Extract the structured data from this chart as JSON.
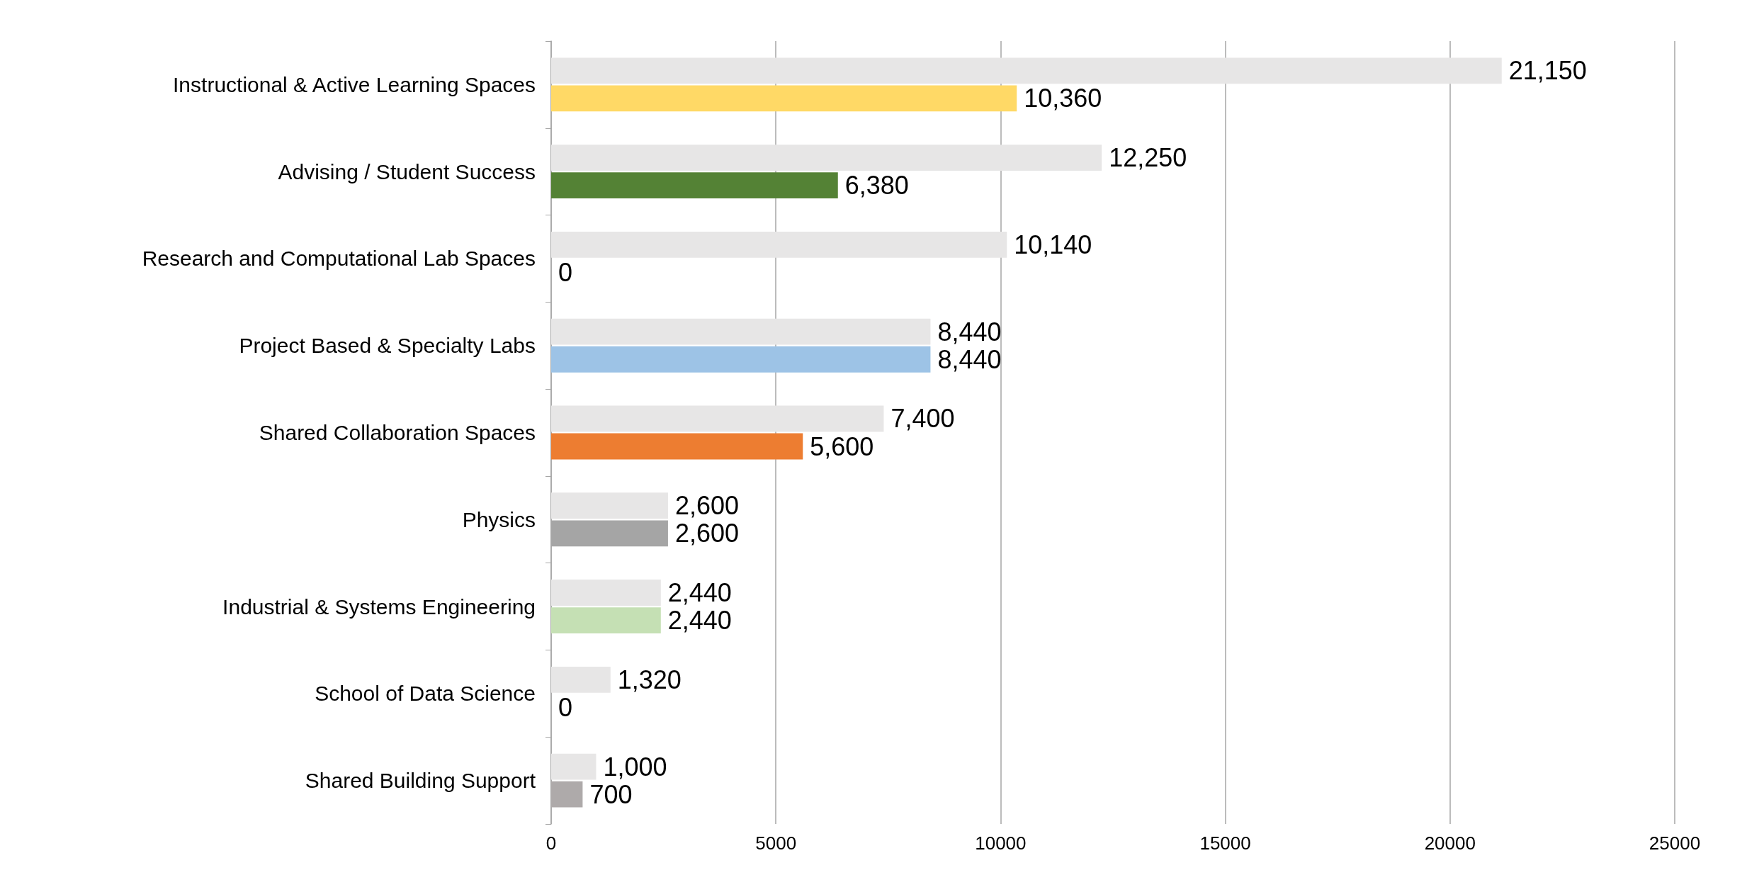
{
  "chart_data": {
    "type": "bar",
    "orientation": "horizontal",
    "categories": [
      "Instructional & Active Learning Spaces",
      "Advising / Student Success",
      "Research and Computational Lab Spaces",
      "Project Based & Specialty Labs",
      "Shared Collaboration Spaces",
      "Physics",
      "Industrial & Systems Engineering",
      "School of Data Science",
      "Shared Building Support"
    ],
    "series": [
      {
        "color": "#e7e6e6",
        "values": [
          21150,
          12250,
          10140,
          8440,
          7400,
          2600,
          2440,
          1320,
          1000
        ],
        "value_labels": [
          "21,150",
          "12,250",
          "10,140",
          "8,440",
          "7,400",
          "2,600",
          "2,440",
          "1,320",
          "1,000"
        ]
      },
      {
        "colors": [
          "#ffd966",
          "#548235",
          "#a5a5a5",
          "#9dc3e6",
          "#ed7d31",
          "#a5a5a5",
          "#c5e0b4",
          "#a5a5a5",
          "#aeaaaa"
        ],
        "values": [
          10360,
          6380,
          0,
          8440,
          5600,
          2600,
          2440,
          0,
          700
        ],
        "value_labels": [
          "10,360",
          "6,380",
          "0",
          "8,440",
          "5,600",
          "2,600",
          "2,440",
          "0",
          "700"
        ]
      }
    ],
    "xlim": [
      0,
      25000
    ],
    "xticks": [
      0,
      5000,
      10000,
      15000,
      20000,
      25000
    ],
    "grid": "x"
  }
}
